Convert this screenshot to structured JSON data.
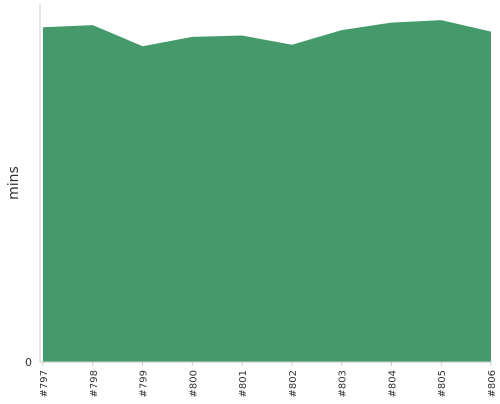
{
  "chart_data": {
    "type": "area",
    "x": [
      "#797",
      "#798",
      "#799",
      "#800",
      "#801",
      "#802",
      "#803",
      "#804",
      "#805",
      "#806"
    ],
    "values": [
      93.5,
      94.1,
      88.2,
      90.8,
      91.2,
      88.6,
      92.7,
      94.8,
      95.5,
      92.3
    ],
    "ylabel": "mins",
    "xlabel": "",
    "y_ticks": [
      "0"
    ],
    "ylim": [
      0,
      100
    ],
    "grid": false,
    "colors": {
      "fill": "#449a6b",
      "axis": "#cccccc",
      "text": "#333333"
    }
  }
}
